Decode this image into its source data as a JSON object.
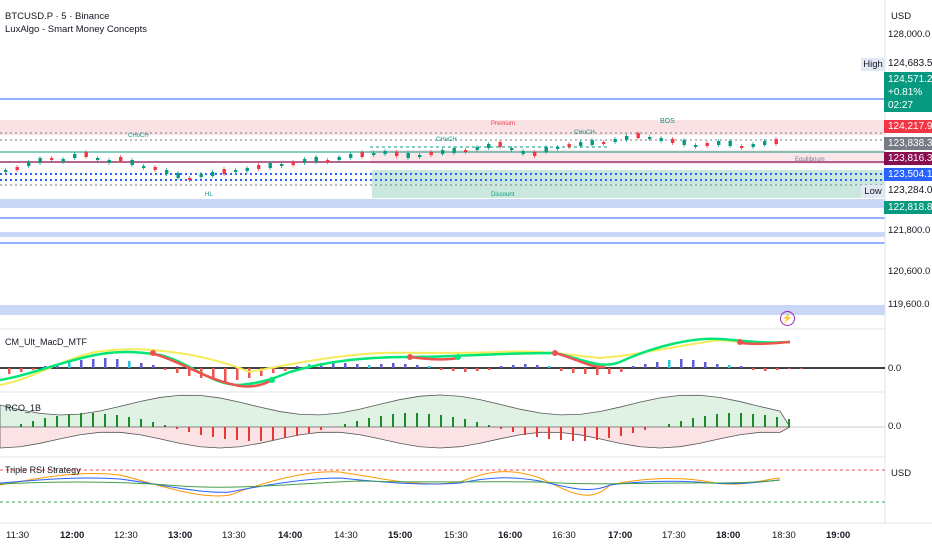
{
  "header": {
    "symbol_line": "BTCUSD.P · 5 · Binance",
    "indicator": "LuxAlgo - Smart Money Concepts"
  },
  "price_scale": {
    "currency": "USD",
    "ticks": [
      "128,000.0",
      "121,800.0",
      "120,600.0",
      "119,600.0"
    ],
    "high_tag": "High",
    "low_tag": "Low",
    "labels": {
      "high_value": "124,683.5",
      "last_price": "124,571.2",
      "change": "+0.81%",
      "countdown": "02:27",
      "red_level": "124,217.9",
      "gray_level": "123,838.3",
      "maroon_level": "123,816.3",
      "blue_level": "123,504.1",
      "low_value": "123,284.0",
      "green_level": "122,818.8"
    },
    "colors": {
      "green": "#089981",
      "red": "#f23645",
      "blue": "#2962ff",
      "maroon": "#880e4f",
      "gray": "#787b86"
    }
  },
  "smc_labels": {
    "premium": "Premium",
    "equilibrium": "Equilibrium",
    "discount": "Discount",
    "bos": "BOS",
    "choch_1": "CHoCH",
    "choch_2": "CHoCH",
    "choch_3": "CHoCH",
    "hl": "HL"
  },
  "indicators": {
    "macd": {
      "name": "CM_Ult_MacD_MTF",
      "zero": "0.0"
    },
    "rco": {
      "name": "RCO_1B",
      "zero": "0.0"
    },
    "rsi": {
      "name": "Triple RSI Strategy",
      "currency": "USD"
    }
  },
  "time_axis": [
    "11:30",
    "12:00",
    "12:30",
    "13:00",
    "13:30",
    "14:00",
    "14:30",
    "15:00",
    "15:30",
    "16:00",
    "16:30",
    "17:00",
    "17:30",
    "18:00",
    "18:30",
    "19:00"
  ],
  "alert_icon": "lightning-icon"
}
